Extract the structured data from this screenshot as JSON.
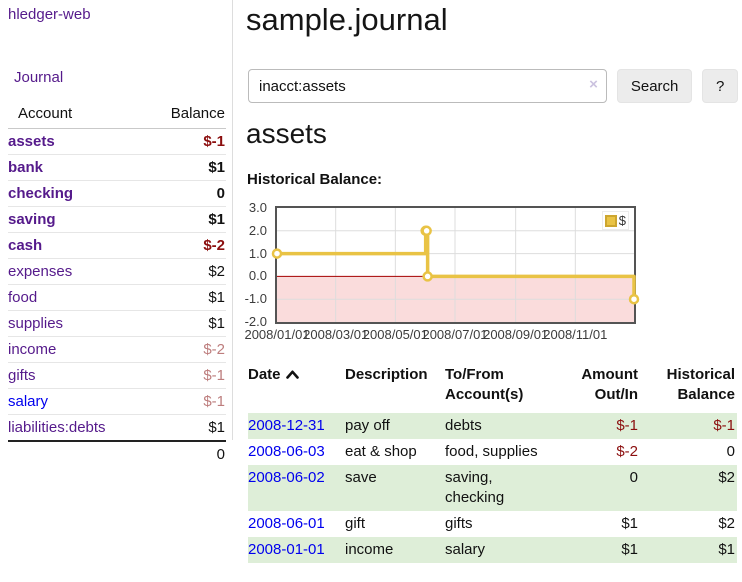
{
  "app": {
    "title": "hledger-web"
  },
  "sidebar": {
    "journal_link": "Journal",
    "accounts_header": {
      "account": "Account",
      "balance": "Balance"
    },
    "accounts": [
      {
        "name": "assets",
        "balance": "$-1"
      },
      {
        "name": "bank",
        "balance": "$1"
      },
      {
        "name": "checking",
        "balance": "0"
      },
      {
        "name": "saving",
        "balance": "$1"
      },
      {
        "name": "cash",
        "balance": "$-2"
      },
      {
        "name": "expenses",
        "balance": "$2"
      },
      {
        "name": "food",
        "balance": "$1"
      },
      {
        "name": "supplies",
        "balance": "$1"
      },
      {
        "name": "income",
        "balance": "$-2"
      },
      {
        "name": "gifts",
        "balance": "$-1"
      },
      {
        "name": "salary",
        "balance": "$-1"
      },
      {
        "name": "liabilities:debts",
        "balance": "$1"
      }
    ],
    "total": "0"
  },
  "main": {
    "title": "sample.journal",
    "search": {
      "value": "inacct:assets",
      "clear_icon": "×",
      "search_button": "Search",
      "help_button": "?"
    },
    "account_heading": "assets",
    "chart_label": "Historical Balance:"
  },
  "chart_data": {
    "type": "line",
    "title": "Historical Balance:",
    "step": true,
    "x_range": [
      "2008-01-01",
      "2008-12-31"
    ],
    "ylim": [
      -2,
      3
    ],
    "y_ticks": [
      3.0,
      2.0,
      1.0,
      0.0,
      -1.0,
      -2.0
    ],
    "x_ticks": [
      "2008/01/01",
      "2008/03/01",
      "2008/05/01",
      "2008/07/01",
      "2008/09/01",
      "2008/11/01"
    ],
    "series": [
      {
        "name": "$",
        "color": "#e9c345",
        "points": [
          {
            "date": "2008-01-01",
            "value": 1
          },
          {
            "date": "2008-06-01",
            "value": 2
          },
          {
            "date": "2008-06-02",
            "value": 2
          },
          {
            "date": "2008-06-03",
            "value": 0
          },
          {
            "date": "2008-12-31",
            "value": -1
          }
        ]
      }
    ],
    "legend": {
      "label": "$",
      "position": "top-right"
    },
    "grid": true,
    "grid_color": "#dddddd",
    "zero_line_color": "#a40000",
    "negative_region_color": "#fadcdc"
  },
  "register": {
    "headers": {
      "date": "Date",
      "description": "Description",
      "accounts": "To/From Account(s)",
      "amount": "Amount Out/In",
      "balance": "Historical Balance"
    },
    "rows": [
      {
        "date": "2008-12-31",
        "description": "pay off",
        "accounts": "debts",
        "amount": "$-1",
        "balance": "$-1"
      },
      {
        "date": "2008-06-03",
        "description": "eat & shop",
        "accounts": "food, supplies",
        "amount": "$-2",
        "balance": "0"
      },
      {
        "date": "2008-06-02",
        "description": "save",
        "accounts": "saving, checking",
        "amount": "0",
        "balance": "$2"
      },
      {
        "date": "2008-06-01",
        "description": "gift",
        "accounts": "gifts",
        "amount": "$1",
        "balance": "$2"
      },
      {
        "date": "2008-01-01",
        "description": "income",
        "accounts": "salary",
        "amount": "$1",
        "balance": "$1"
      }
    ]
  }
}
